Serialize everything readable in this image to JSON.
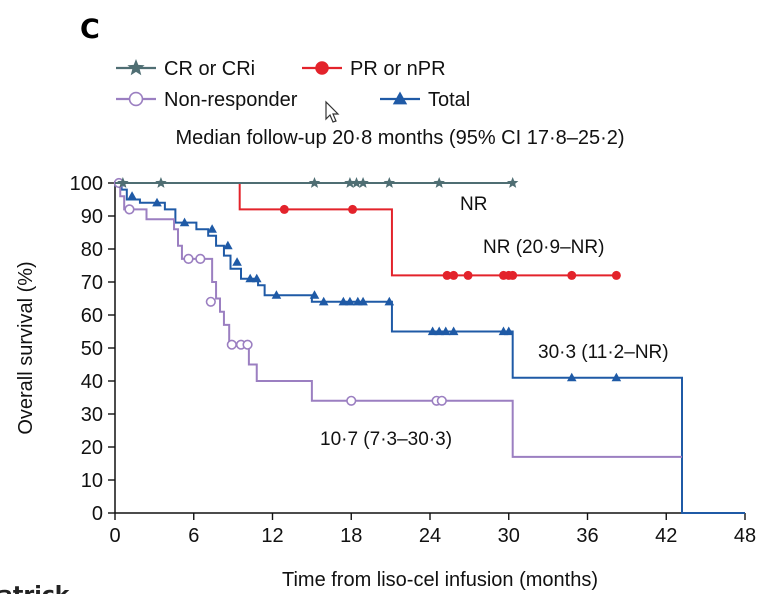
{
  "panel_label": "C",
  "cropped_text": "atrick",
  "colors": {
    "cr": "#4f6e73",
    "pr": "#e3232b",
    "nonresponder": "#9b7fc1",
    "total": "#1f5aa6",
    "axis": "#111111"
  },
  "icons": {
    "cursor": "mouse-pointer-icon"
  },
  "chart_data": {
    "type": "line",
    "subtype": "kaplan-meier-step",
    "subtitle": "Median follow-up 20·8 months (95% CI 17·8–25·2)",
    "xlabel": "Time from liso-cel infusion (months)",
    "ylabel": "Overall survival (%)",
    "xlim": [
      0,
      48
    ],
    "ylim": [
      0,
      100
    ],
    "xticks": [
      0,
      6,
      12,
      18,
      24,
      30,
      36,
      42,
      48
    ],
    "yticks": [
      0,
      10,
      20,
      30,
      40,
      50,
      60,
      70,
      80,
      90,
      100
    ],
    "grid": false,
    "legend": "top-left",
    "series": [
      {
        "name": "CR or CRi",
        "marker": "star",
        "color": "#4f6e73",
        "steps": [
          [
            0,
            100
          ],
          [
            30.3,
            100
          ]
        ],
        "censored": [
          [
            0.6,
            100
          ],
          [
            3.5,
            100
          ],
          [
            15.2,
            100
          ],
          [
            17.9,
            100
          ],
          [
            18.4,
            100
          ],
          [
            18.9,
            100
          ],
          [
            20.9,
            100
          ],
          [
            24.7,
            100
          ],
          [
            30.3,
            100
          ]
        ],
        "median_label": "NR"
      },
      {
        "name": "PR or nPR",
        "marker": "circle",
        "color": "#e3232b",
        "steps": [
          [
            0,
            100
          ],
          [
            9.5,
            100
          ],
          [
            9.5,
            92
          ],
          [
            21.1,
            92
          ],
          [
            21.1,
            72
          ],
          [
            38.2,
            72
          ]
        ],
        "censored": [
          [
            12.9,
            92
          ],
          [
            18.1,
            92
          ],
          [
            25.3,
            72
          ],
          [
            25.8,
            72
          ],
          [
            26.9,
            72
          ],
          [
            29.6,
            72
          ],
          [
            30.0,
            72
          ],
          [
            30.3,
            72
          ],
          [
            34.8,
            72
          ],
          [
            38.2,
            72
          ]
        ],
        "median_label": "NR (20·9–NR)"
      },
      {
        "name": "Non-responder",
        "marker": "open-circle",
        "color": "#9b7fc1",
        "steps": [
          [
            0,
            100
          ],
          [
            0.4,
            100
          ],
          [
            0.4,
            96
          ],
          [
            0.7,
            96
          ],
          [
            0.7,
            92
          ],
          [
            2.4,
            92
          ],
          [
            2.4,
            89
          ],
          [
            4.5,
            89
          ],
          [
            4.5,
            86
          ],
          [
            4.8,
            86
          ],
          [
            4.8,
            81
          ],
          [
            5.1,
            81
          ],
          [
            5.1,
            77
          ],
          [
            7.4,
            77
          ],
          [
            7.4,
            70
          ],
          [
            7.7,
            70
          ],
          [
            7.7,
            65
          ],
          [
            8.0,
            65
          ],
          [
            8.0,
            61
          ],
          [
            8.3,
            61
          ],
          [
            8.3,
            57
          ],
          [
            8.7,
            57
          ],
          [
            8.7,
            51
          ],
          [
            10.2,
            51
          ],
          [
            10.2,
            45
          ],
          [
            10.8,
            45
          ],
          [
            10.8,
            40
          ],
          [
            15.0,
            40
          ],
          [
            15.0,
            34
          ],
          [
            30.3,
            34
          ],
          [
            30.3,
            17
          ],
          [
            43.2,
            17
          ]
        ],
        "censored": [
          [
            0.3,
            100
          ],
          [
            1.1,
            92
          ],
          [
            5.6,
            77
          ],
          [
            6.5,
            77
          ],
          [
            7.3,
            64
          ],
          [
            8.9,
            51
          ],
          [
            9.6,
            51
          ],
          [
            10.1,
            51
          ],
          [
            18.0,
            34
          ],
          [
            24.5,
            34
          ],
          [
            24.9,
            34
          ]
        ],
        "median_label": "10·7 (7·3–30·3)"
      },
      {
        "name": "Total",
        "marker": "triangle",
        "color": "#1f5aa6",
        "steps": [
          [
            0,
            100
          ],
          [
            0.5,
            100
          ],
          [
            0.5,
            98
          ],
          [
            0.9,
            98
          ],
          [
            0.9,
            95
          ],
          [
            1.9,
            95
          ],
          [
            1.9,
            94
          ],
          [
            3.8,
            94
          ],
          [
            3.8,
            92
          ],
          [
            4.6,
            92
          ],
          [
            4.6,
            88
          ],
          [
            6.2,
            88
          ],
          [
            6.2,
            86
          ],
          [
            7.1,
            86
          ],
          [
            7.1,
            84
          ],
          [
            7.7,
            84
          ],
          [
            7.7,
            81
          ],
          [
            8.3,
            81
          ],
          [
            8.3,
            78
          ],
          [
            8.8,
            78
          ],
          [
            8.8,
            74
          ],
          [
            9.6,
            74
          ],
          [
            9.6,
            71
          ],
          [
            10.9,
            71
          ],
          [
            10.9,
            69
          ],
          [
            11.4,
            69
          ],
          [
            11.4,
            66
          ],
          [
            15.0,
            66
          ],
          [
            15.0,
            64
          ],
          [
            21.1,
            64
          ],
          [
            21.1,
            55
          ],
          [
            30.3,
            55
          ],
          [
            30.3,
            41
          ],
          [
            43.2,
            41
          ],
          [
            43.2,
            0
          ],
          [
            48,
            0
          ]
        ],
        "censored": [
          [
            0.3,
            100
          ],
          [
            1.3,
            96
          ],
          [
            3.2,
            94
          ],
          [
            5.3,
            88
          ],
          [
            7.4,
            86
          ],
          [
            8.6,
            81
          ],
          [
            9.3,
            76
          ],
          [
            10.3,
            71
          ],
          [
            10.8,
            71
          ],
          [
            12.3,
            66
          ],
          [
            15.2,
            66
          ],
          [
            15.9,
            64
          ],
          [
            17.4,
            64
          ],
          [
            17.9,
            64
          ],
          [
            18.5,
            64
          ],
          [
            18.9,
            64
          ],
          [
            20.9,
            64
          ],
          [
            24.2,
            55
          ],
          [
            24.7,
            55
          ],
          [
            25.2,
            55
          ],
          [
            25.8,
            55
          ],
          [
            29.6,
            55
          ],
          [
            30.0,
            55
          ],
          [
            34.8,
            41
          ],
          [
            38.2,
            41
          ]
        ],
        "median_label": "30·3 (11·2–NR)"
      }
    ]
  }
}
